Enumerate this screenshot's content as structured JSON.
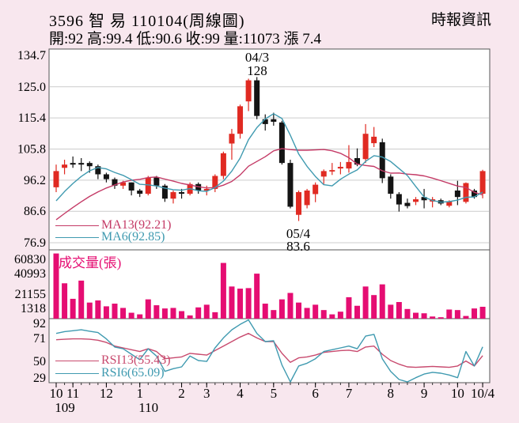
{
  "header": {
    "title": "3596 智 易 110104(周線圖)",
    "source": "時報資訊",
    "ohlc": "開:92 高:99.4 低:90.6 收:99 量:11073 漲 7.4"
  },
  "colors": {
    "background": "#f8e7ee",
    "pane": "#ffffff",
    "border": "#555555",
    "grid": "#cccccc",
    "text": "#000000",
    "up": "#e02a22",
    "down": "#141414",
    "volume": "#e50d72",
    "ma13": "#c43a66",
    "ma6": "#3f9ab0",
    "rsi13": "#c84a6e",
    "rsi6": "#3f9ab0"
  },
  "chart_data": {
    "type": "candlestick",
    "title": "3596 智易 週線圖 (weekly K-line with volume and RSI)",
    "main": {
      "y_ticks": [
        134.7,
        125.0,
        115.4,
        105.8,
        96.2,
        86.6,
        76.9
      ],
      "legend": {
        "ma13": "MA13(92.21)",
        "ma6": "MA6(92.85)"
      },
      "annotations": {
        "peak": {
          "date": "04/3",
          "value": "128",
          "week": 24
        },
        "trough": {
          "date": "05/4",
          "value": "83.6",
          "week": 29
        }
      },
      "pre_closes": [
        76,
        77,
        78,
        79,
        80,
        81,
        82,
        84,
        86,
        88,
        90,
        92
      ],
      "candles": [
        [
          94,
          101,
          92.5,
          99
        ],
        [
          100,
          102.5,
          98,
          101
        ],
        [
          101.5,
          103.5,
          100,
          101
        ],
        [
          101.5,
          103,
          99,
          101
        ],
        [
          101.5,
          102,
          98.5,
          100.5
        ],
        [
          100.5,
          101,
          96.5,
          98
        ],
        [
          98,
          98.5,
          95.5,
          96.5
        ],
        [
          96.5,
          97,
          93.5,
          94.5
        ],
        [
          94.5,
          96,
          93.5,
          95.5
        ],
        [
          95.5,
          95.5,
          91.5,
          93
        ],
        [
          93,
          93.5,
          91,
          92
        ],
        [
          92,
          97.5,
          91.5,
          97
        ],
        [
          97,
          97.5,
          93.5,
          94.5
        ],
        [
          94.5,
          95,
          89.5,
          90.5
        ],
        [
          90.5,
          93,
          89,
          92.5
        ],
        [
          92.5,
          93.5,
          90.5,
          92
        ],
        [
          92,
          95.5,
          91.5,
          95
        ],
        [
          95,
          95.5,
          92,
          93
        ],
        [
          93,
          94.5,
          91.5,
          93.5
        ],
        [
          93.5,
          98,
          92.5,
          97.5
        ],
        [
          97.5,
          105,
          96.5,
          104.5
        ],
        [
          107.5,
          112,
          102.5,
          110.5
        ],
        [
          110.5,
          119.5,
          109,
          119
        ],
        [
          120.5,
          127.5,
          117.5,
          127
        ],
        [
          127,
          128,
          115,
          116
        ],
        [
          115,
          116.5,
          111.5,
          113.5
        ],
        [
          115,
          117,
          113,
          114.2
        ],
        [
          114,
          114.5,
          101,
          101.5
        ],
        [
          101.5,
          102.5,
          87.5,
          88
        ],
        [
          85.5,
          93,
          83.6,
          92.5
        ],
        [
          88.5,
          93.5,
          87.5,
          93
        ],
        [
          91.9,
          95.5,
          89.4,
          94.8
        ],
        [
          97.3,
          99.5,
          95,
          99
        ],
        [
          99,
          101.5,
          97.8,
          99.3
        ],
        [
          99.8,
          101.8,
          98,
          100.3
        ],
        [
          99.8,
          107,
          98.5,
          101.8
        ],
        [
          103,
          106,
          100.5,
          101
        ],
        [
          102.7,
          113.5,
          101.5,
          110.5
        ],
        [
          107.6,
          112.6,
          106.4,
          109.6
        ],
        [
          107.9,
          109,
          95.3,
          96.8
        ],
        [
          97.3,
          98,
          90.5,
          92
        ],
        [
          91.9,
          92.5,
          86.5,
          88.7
        ],
        [
          89.2,
          90.5,
          87.5,
          88.2
        ],
        [
          89.5,
          91,
          88.5,
          90.3
        ],
        [
          91,
          93.5,
          87.5,
          90
        ],
        [
          89.6,
          91,
          87.8,
          90.3
        ],
        [
          90,
          90.5,
          88.5,
          89
        ],
        [
          88.3,
          90,
          87.8,
          89.7
        ],
        [
          93,
          96,
          88.5,
          91
        ],
        [
          89.5,
          95.5,
          89,
          95.3
        ],
        [
          93,
          93.5,
          90.5,
          91
        ],
        [
          92,
          99.4,
          90.6,
          99
        ]
      ]
    },
    "volume": {
      "title": "成交量(張)",
      "y_ticks": [
        60830,
        40993,
        21155,
        1318
      ],
      "values": [
        60830,
        33000,
        18500,
        35500,
        15000,
        17000,
        11500,
        14000,
        10000,
        5500,
        4000,
        18000,
        12500,
        9500,
        10000,
        7000,
        3000,
        10500,
        13000,
        6000,
        52000,
        30000,
        28000,
        28500,
        42000,
        14000,
        8000,
        18000,
        24000,
        15000,
        10000,
        13000,
        8000,
        4000,
        6500,
        20000,
        12000,
        30000,
        22000,
        32000,
        13000,
        15500,
        9000,
        5500,
        5000,
        2000,
        1318,
        8500,
        8000,
        2500,
        9500,
        11073
      ]
    },
    "rsi": {
      "y_ticks": [
        92,
        71,
        50,
        29
      ],
      "legend": {
        "rsi13": "RSI13(55.43)",
        "rsi6": "RSI6(65.09)"
      },
      "rsi13": [
        73,
        73.5,
        74,
        74,
        73.5,
        72.5,
        70,
        66,
        64,
        62,
        60,
        63,
        60,
        52,
        53,
        54,
        58,
        57,
        56,
        61,
        66,
        71,
        76,
        80,
        75,
        71,
        71,
        58,
        48,
        53,
        54,
        56,
        59,
        60,
        61,
        61.5,
        60,
        65,
        66,
        57,
        50,
        46,
        43,
        42.5,
        43,
        43.5,
        43,
        42.5,
        44,
        49.5,
        44,
        55.4
      ],
      "rsi6": [
        80,
        82,
        83,
        84,
        82.5,
        81,
        74,
        65,
        63,
        57,
        51,
        63,
        55,
        38,
        41,
        43,
        55,
        50,
        49,
        64,
        75,
        84,
        90,
        95,
        80,
        71,
        72,
        45,
        26,
        44,
        47,
        52,
        60,
        62,
        64,
        66,
        63,
        77,
        79,
        52,
        38,
        29,
        25,
        31,
        35,
        37,
        36,
        34,
        31,
        60,
        44,
        65.1
      ]
    },
    "x_axis": {
      "months": [
        {
          "label": "10",
          "week": 0
        },
        {
          "label": "11",
          "week": 2
        },
        {
          "label": "12",
          "week": 6
        },
        {
          "label": "1",
          "week": 10
        },
        {
          "label": "2",
          "week": 15
        },
        {
          "label": "3",
          "week": 18
        },
        {
          "label": "4",
          "week": 22
        },
        {
          "label": "5",
          "week": 26
        },
        {
          "label": "6",
          "week": 31
        },
        {
          "label": "7",
          "week": 35
        },
        {
          "label": "8",
          "week": 40
        },
        {
          "label": "9",
          "week": 44
        },
        {
          "label": "10",
          "week": 48
        },
        {
          "label": "10/4",
          "week": 51
        }
      ],
      "years": [
        {
          "label": "109",
          "week": 0
        },
        {
          "label": "110",
          "week": 10
        }
      ]
    }
  }
}
